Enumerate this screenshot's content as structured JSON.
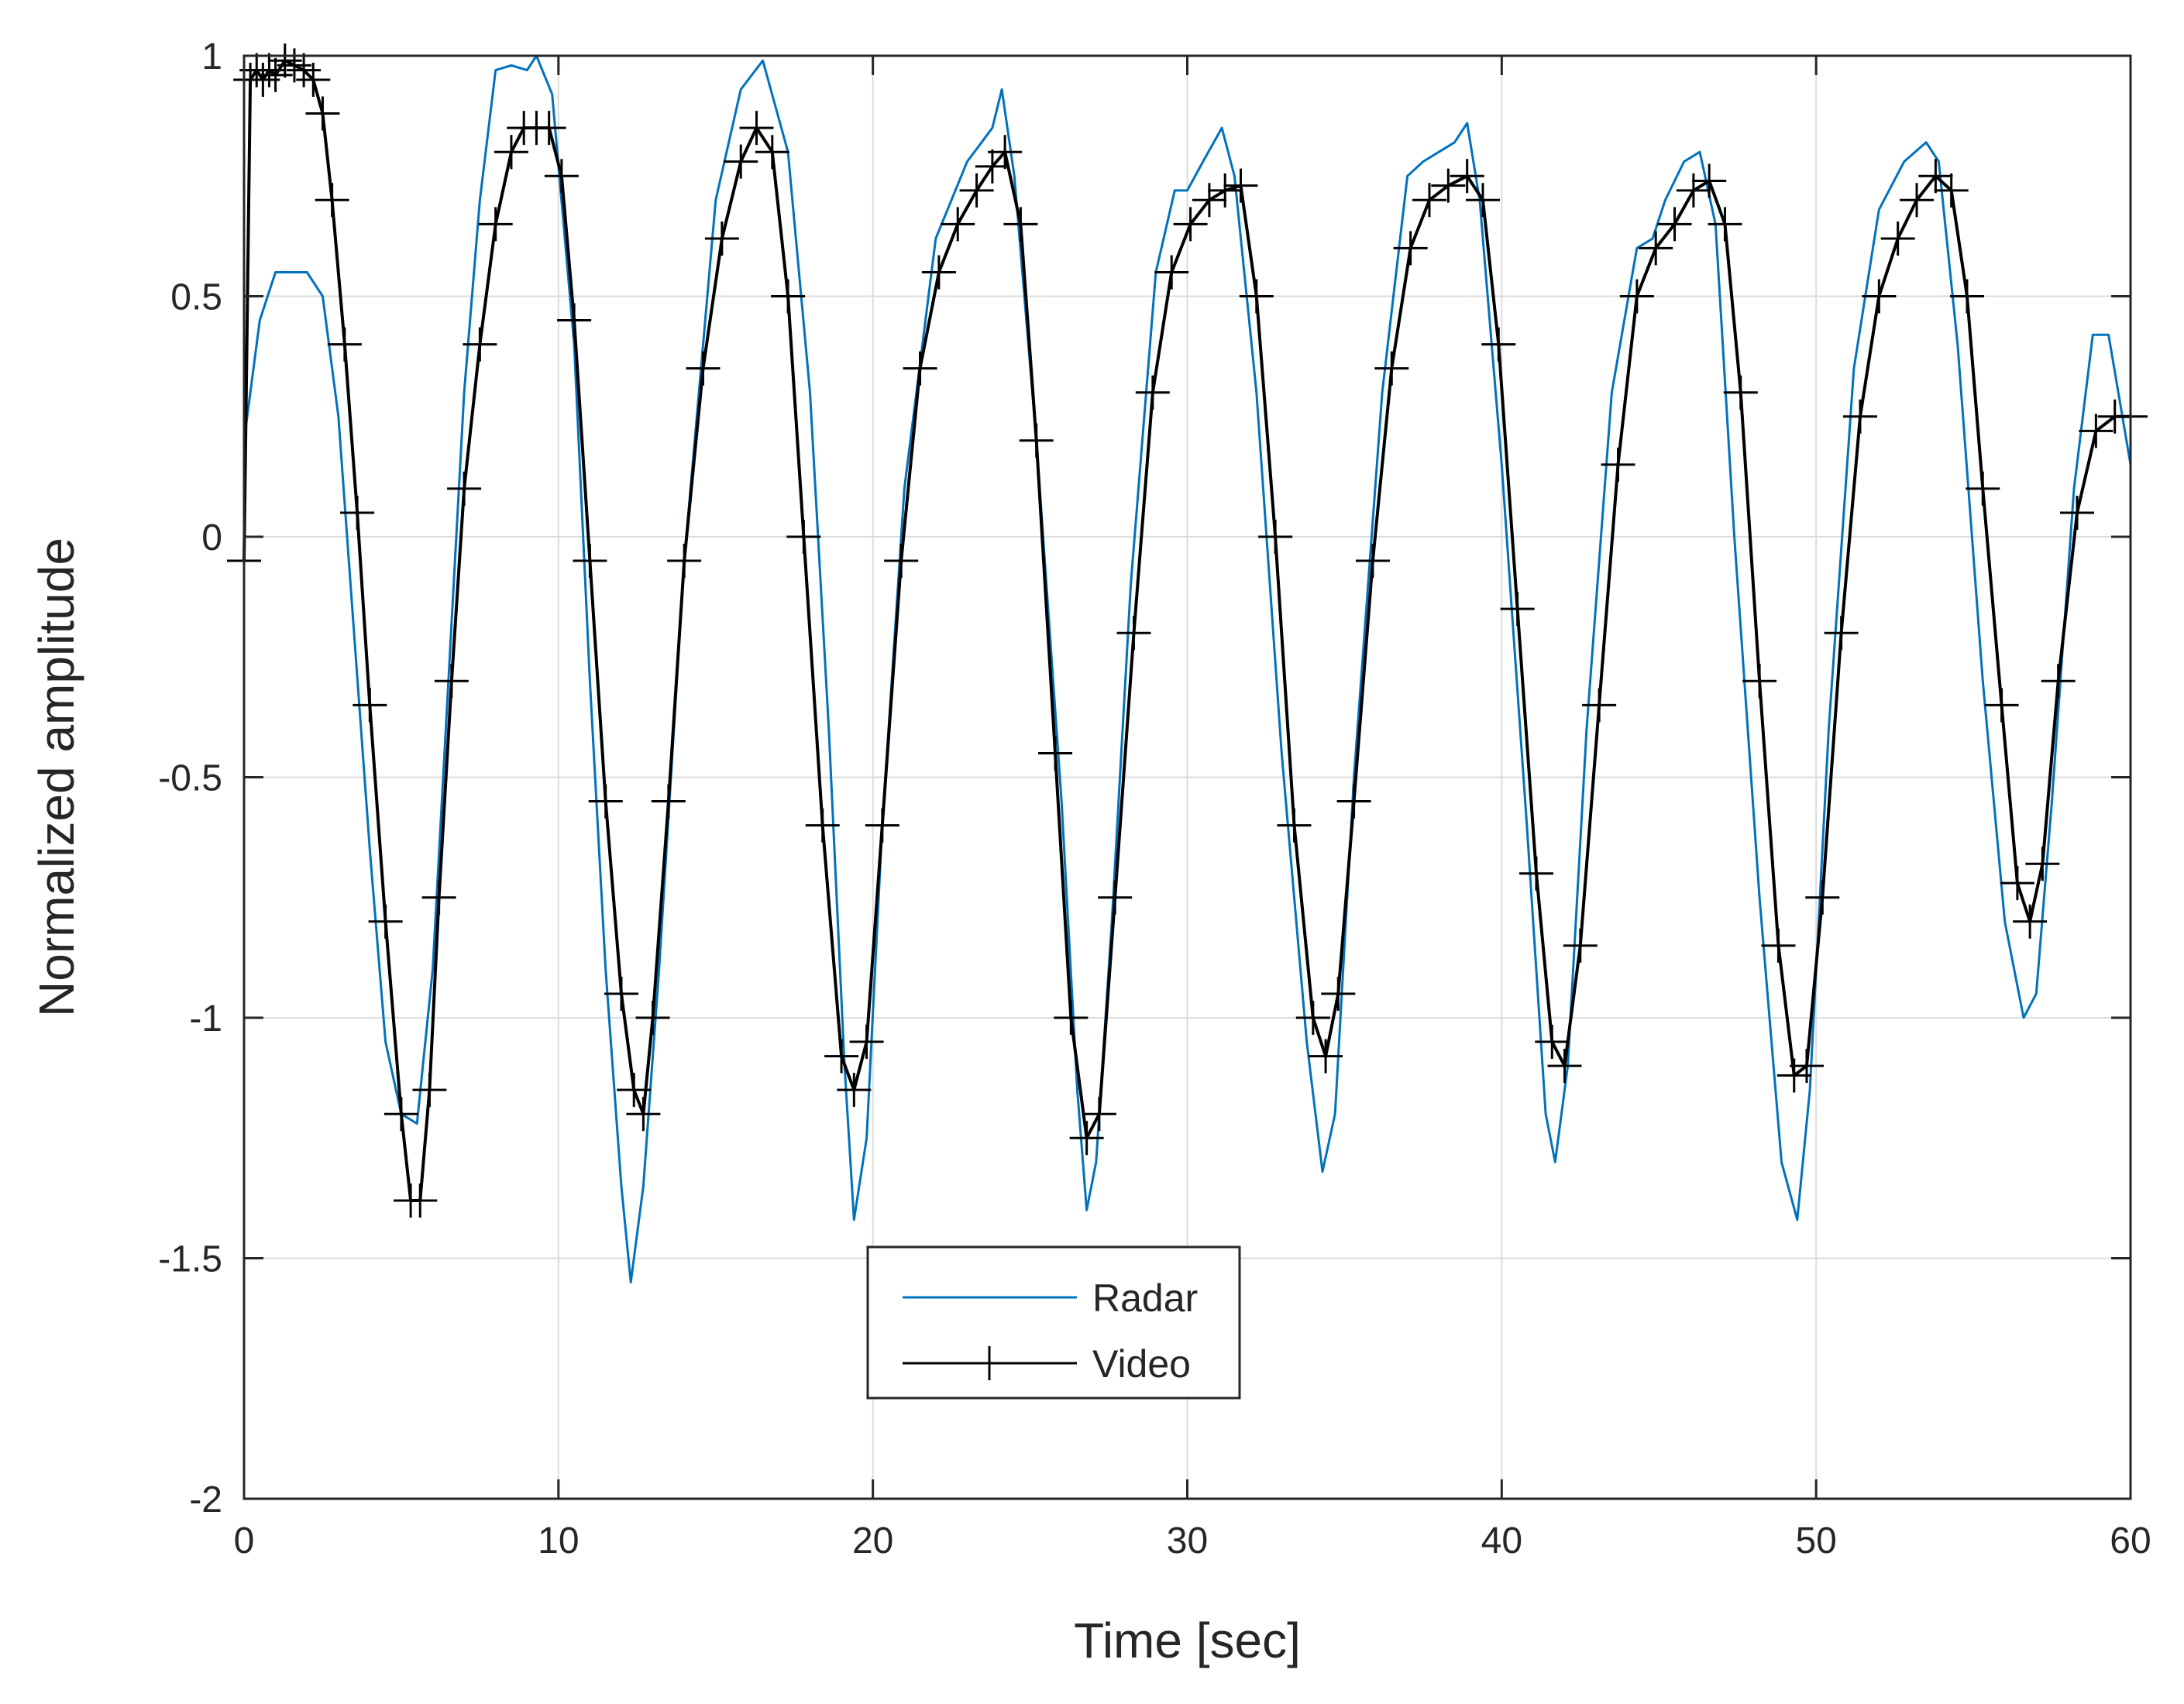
{
  "chart_data": {
    "type": "line",
    "title": "",
    "xlabel": "Time [sec]",
    "ylabel": "Normalized amplitude",
    "xlim": [
      0,
      60
    ],
    "ylim": [
      -2,
      1
    ],
    "xticks": [
      0,
      10,
      20,
      30,
      40,
      50,
      60
    ],
    "yticks": [
      -2,
      -1.5,
      -1,
      -0.5,
      0,
      0.5,
      1
    ],
    "xtick_labels": [
      "0",
      "10",
      "20",
      "30",
      "40",
      "50",
      "60"
    ],
    "ytick_labels": [
      "-2",
      "-1.5",
      "-1",
      "-0.5",
      "0",
      "0.5",
      "1"
    ],
    "grid": true,
    "legend_position": "bottom-center",
    "series": [
      {
        "name": "Radar",
        "color": "#0072BD",
        "marker": "none",
        "x": [
          0.0,
          0.5,
          1.0,
          1.5,
          2.0,
          2.5,
          3.0,
          3.5,
          4.0,
          4.5,
          5.0,
          5.5,
          6.0,
          6.5,
          7.0,
          7.5,
          8.0,
          8.5,
          9.0,
          9.3,
          9.8,
          10.5,
          11.0,
          11.5,
          12.0,
          12.3,
          12.7,
          13.2,
          14.0,
          15.0,
          15.8,
          16.5,
          17.3,
          18.0,
          18.6,
          19.1,
          19.4,
          19.8,
          20.3,
          21.0,
          22.0,
          23.0,
          23.8,
          24.1,
          24.5,
          25.2,
          26.0,
          26.5,
          26.8,
          27.1,
          27.6,
          28.2,
          29.0,
          29.6,
          30.0,
          30.5,
          31.1,
          31.5,
          32.2,
          33.0,
          33.8,
          34.3,
          34.7,
          35.3,
          36.2,
          37.0,
          37.5,
          38.0,
          38.5,
          38.9,
          39.3,
          40.0,
          40.8,
          41.4,
          41.7,
          42.1,
          42.7,
          43.5,
          44.3,
          44.8,
          45.2,
          45.8,
          46.3,
          46.8,
          47.4,
          48.2,
          48.9,
          49.4,
          49.8,
          50.4,
          51.2,
          52.0,
          52.8,
          53.5,
          53.9,
          54.5,
          55.3,
          56.0,
          56.6,
          57.0,
          57.5,
          58.2,
          58.8,
          59.3,
          60.0
        ],
        "y": [
          0.2,
          0.45,
          0.55,
          0.55,
          0.55,
          0.5,
          0.25,
          -0.2,
          -0.65,
          -1.05,
          -1.2,
          -1.22,
          -0.9,
          -0.3,
          0.3,
          0.7,
          0.97,
          0.98,
          0.97,
          1.0,
          0.92,
          0.4,
          -0.3,
          -0.9,
          -1.35,
          -1.55,
          -1.35,
          -0.9,
          -0.05,
          0.7,
          0.93,
          0.99,
          0.8,
          0.3,
          -0.4,
          -1.1,
          -1.42,
          -1.25,
          -0.6,
          0.1,
          0.62,
          0.78,
          0.85,
          0.93,
          0.75,
          0.2,
          -0.55,
          -1.15,
          -1.4,
          -1.3,
          -0.8,
          -0.1,
          0.55,
          0.72,
          0.72,
          0.78,
          0.85,
          0.75,
          0.3,
          -0.45,
          -1.05,
          -1.32,
          -1.2,
          -0.5,
          0.3,
          0.75,
          0.78,
          0.8,
          0.82,
          0.86,
          0.7,
          0.15,
          -0.6,
          -1.2,
          -1.3,
          -1.1,
          -0.4,
          0.3,
          0.6,
          0.62,
          0.7,
          0.78,
          0.8,
          0.65,
          0.0,
          -0.75,
          -1.3,
          -1.42,
          -1.15,
          -0.4,
          0.35,
          0.68,
          0.78,
          0.82,
          0.78,
          0.4,
          -0.3,
          -0.8,
          -1.0,
          -0.95,
          -0.55,
          0.1,
          0.42,
          0.42,
          0.15
        ]
      },
      {
        "name": "Video",
        "color": "#000000",
        "marker": "+",
        "x": [
          0.0,
          0.2,
          0.4,
          0.6,
          0.8,
          1.0,
          1.3,
          1.6,
          1.9,
          2.2,
          2.5,
          2.8,
          3.2,
          3.6,
          4.0,
          4.5,
          5.0,
          5.3,
          5.6,
          5.9,
          6.2,
          6.6,
          7.0,
          7.5,
          8.0,
          8.5,
          8.9,
          9.3,
          9.7,
          10.1,
          10.5,
          11.0,
          11.5,
          12.0,
          12.4,
          12.7,
          13.0,
          13.5,
          14.0,
          14.6,
          15.2,
          15.8,
          16.3,
          16.8,
          17.3,
          17.8,
          18.4,
          19.0,
          19.4,
          19.8,
          20.3,
          20.9,
          21.5,
          22.1,
          22.7,
          23.3,
          23.8,
          24.2,
          24.7,
          25.2,
          25.8,
          26.3,
          26.8,
          27.2,
          27.7,
          28.3,
          28.9,
          29.5,
          30.1,
          30.7,
          31.2,
          31.7,
          32.2,
          32.8,
          33.4,
          34.0,
          34.4,
          34.8,
          35.3,
          35.9,
          36.5,
          37.1,
          37.7,
          38.3,
          38.9,
          39.4,
          39.9,
          40.5,
          41.1,
          41.6,
          42.0,
          42.5,
          43.1,
          43.7,
          44.3,
          44.9,
          45.5,
          46.1,
          46.6,
          47.1,
          47.6,
          48.2,
          48.8,
          49.3,
          49.7,
          50.2,
          50.8,
          51.4,
          52.0,
          52.6,
          53.2,
          53.8,
          54.3,
          54.8,
          55.3,
          55.9,
          56.4,
          56.8,
          57.2,
          57.7,
          58.3,
          58.9,
          59.5,
          60.0
        ],
        "y": [
          -0.05,
          0.95,
          0.97,
          0.95,
          0.97,
          0.96,
          0.99,
          0.98,
          0.97,
          0.95,
          0.88,
          0.7,
          0.4,
          0.05,
          -0.35,
          -0.8,
          -1.2,
          -1.38,
          -1.38,
          -1.15,
          -0.75,
          -0.3,
          0.1,
          0.4,
          0.65,
          0.8,
          0.85,
          0.85,
          0.85,
          0.75,
          0.45,
          -0.05,
          -0.55,
          -0.95,
          -1.15,
          -1.2,
          -1.0,
          -0.55,
          -0.05,
          0.35,
          0.62,
          0.78,
          0.85,
          0.8,
          0.5,
          0.0,
          -0.6,
          -1.08,
          -1.15,
          -1.05,
          -0.6,
          -0.05,
          0.35,
          0.55,
          0.65,
          0.72,
          0.77,
          0.8,
          0.65,
          0.2,
          -0.45,
          -1.0,
          -1.25,
          -1.2,
          -0.75,
          -0.2,
          0.3,
          0.55,
          0.65,
          0.7,
          0.72,
          0.73,
          0.5,
          0.0,
          -0.6,
          -1.0,
          -1.08,
          -0.95,
          -0.55,
          -0.05,
          0.35,
          0.6,
          0.7,
          0.73,
          0.75,
          0.7,
          0.4,
          -0.15,
          -0.7,
          -1.05,
          -1.1,
          -0.85,
          -0.35,
          0.15,
          0.5,
          0.6,
          0.65,
          0.72,
          0.74,
          0.65,
          0.3,
          -0.3,
          -0.85,
          -1.12,
          -1.1,
          -0.75,
          -0.2,
          0.25,
          0.5,
          0.62,
          0.7,
          0.75,
          0.72,
          0.5,
          0.1,
          -0.35,
          -0.72,
          -0.8,
          -0.68,
          -0.3,
          0.05,
          0.22,
          0.25,
          0.25
        ]
      }
    ]
  }
}
